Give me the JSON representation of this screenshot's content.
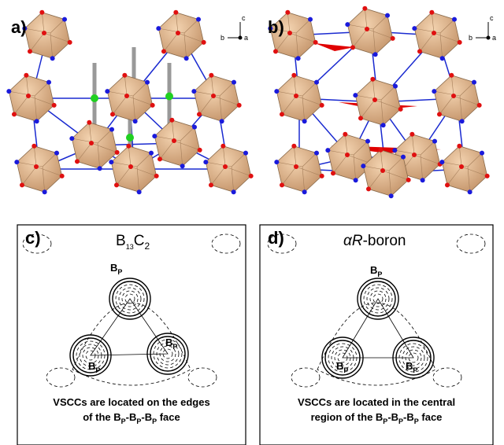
{
  "panels": [
    {
      "label": "a)",
      "axes": {
        "up": "c",
        "left": "b",
        "right": "a"
      }
    },
    {
      "label": "b)",
      "axes": {
        "up": "c",
        "left": "b",
        "right": "a"
      }
    },
    {
      "label": "c)",
      "title": [
        "B",
        "13",
        "C",
        "2"
      ],
      "atom_labels": [
        [
          "B",
          "P"
        ],
        [
          "B",
          "P"
        ],
        [
          "B",
          "P"
        ]
      ],
      "caption": [
        [
          "VSCCs are located on the edges"
        ],
        [
          "of the B",
          "P",
          "-B",
          "P",
          "-B",
          "P",
          " face"
        ]
      ]
    },
    {
      "label": "d)",
      "title": [
        "αR",
        "-boron"
      ],
      "atom_labels": [
        [
          "B",
          "P"
        ],
        [
          "B",
          "P"
        ],
        [
          "B",
          "P"
        ]
      ],
      "caption": [
        [
          "VSCCs are located in the central"
        ],
        [
          "region of the B",
          "P",
          "-B",
          "P",
          "-B",
          "P",
          " face"
        ]
      ]
    }
  ]
}
